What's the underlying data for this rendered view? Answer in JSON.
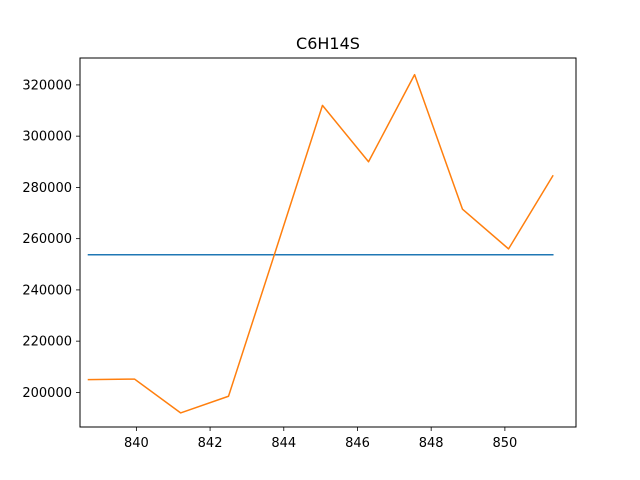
{
  "chart_data": {
    "type": "line",
    "title": "C6H14S",
    "xlabel": "",
    "ylabel": "",
    "xlim": [
      838.47,
      851.93
    ],
    "ylim": [
      186500,
      330500
    ],
    "xticks": [
      840,
      842,
      844,
      846,
      848,
      850
    ],
    "xtick_labels": [
      "840",
      "842",
      "844",
      "846",
      "848",
      "850"
    ],
    "yticks": [
      200000,
      220000,
      240000,
      260000,
      280000,
      300000,
      320000
    ],
    "ytick_labels": [
      "200000",
      "220000",
      "240000",
      "260000",
      "280000",
      "300000",
      "320000"
    ],
    "grid": false,
    "legend": "none",
    "series": [
      {
        "color": "#1f77b4",
        "x": [
          838.7,
          851.3
        ],
        "y": [
          253700,
          253700
        ]
      },
      {
        "color": "#ff7f0e",
        "x": [
          838.7,
          839.95,
          841.2,
          842.5,
          843.75,
          845.05,
          846.3,
          847.55,
          848.85,
          850.1,
          851.3
        ],
        "y": [
          205000,
          205200,
          192000,
          198500,
          254000,
          312000,
          290000,
          324000,
          271500,
          256000,
          284500
        ]
      }
    ]
  }
}
